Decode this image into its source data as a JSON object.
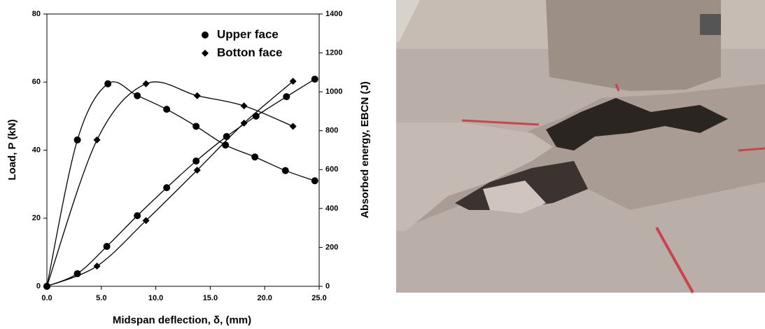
{
  "chart_data": {
    "type": "line",
    "x_label": "Midspan deflection, δ, (mm)",
    "y_label": "Load, P (kN)",
    "y2_label": "Absorbed energy, EBCN (J)",
    "xlim": [
      0,
      25
    ],
    "ylim": [
      0,
      80
    ],
    "y2lim": [
      0,
      1400
    ],
    "xticks": [
      {
        "value": 0,
        "label": "0.0"
      },
      {
        "value": 5,
        "label": "5.0"
      },
      {
        "value": 10,
        "label": "10.0"
      },
      {
        "value": 15,
        "label": "15.0"
      },
      {
        "value": 20,
        "label": "20.0"
      },
      {
        "value": 25,
        "label": "25.0"
      }
    ],
    "yticks": [
      0,
      20,
      40,
      60,
      80
    ],
    "y2ticks": [
      0,
      200,
      400,
      600,
      800,
      1000,
      1200,
      1400
    ],
    "series": [
      {
        "name": "Upper face",
        "marker": "circle",
        "color": "#000000",
        "x": [
          0,
          2.8,
          5.6,
          8.3,
          11,
          13.7,
          16.4,
          19.1,
          21.9,
          24.6
        ],
        "values": [
          0,
          43,
          59.5,
          56,
          52,
          47,
          41.5,
          38,
          34,
          31
        ]
      },
      {
        "name": "Botton face",
        "marker": "diamond",
        "color": "#000000",
        "x": [
          0,
          4.6,
          9.1,
          13.8,
          18.1,
          22.6
        ],
        "values": [
          0,
          43,
          59.5,
          56,
          53,
          47
        ]
      },
      {
        "marker": "circle",
        "color": "#000000",
        "axis": "y2",
        "x": [
          0,
          2.8,
          5.5,
          8.3,
          11,
          13.7,
          16.5,
          19.2,
          22,
          24.6
        ],
        "values": [
          0,
          65,
          205,
          363,
          507,
          644,
          770,
          875,
          975,
          1065
        ]
      },
      {
        "marker": "diamond",
        "color": "#000000",
        "axis": "y2",
        "x": [
          0,
          4.6,
          9.1,
          13.8,
          18.1,
          22.6
        ],
        "values": [
          0,
          104,
          338,
          597,
          839,
          1054
        ]
      }
    ],
    "legend": "upper-right"
  }
}
